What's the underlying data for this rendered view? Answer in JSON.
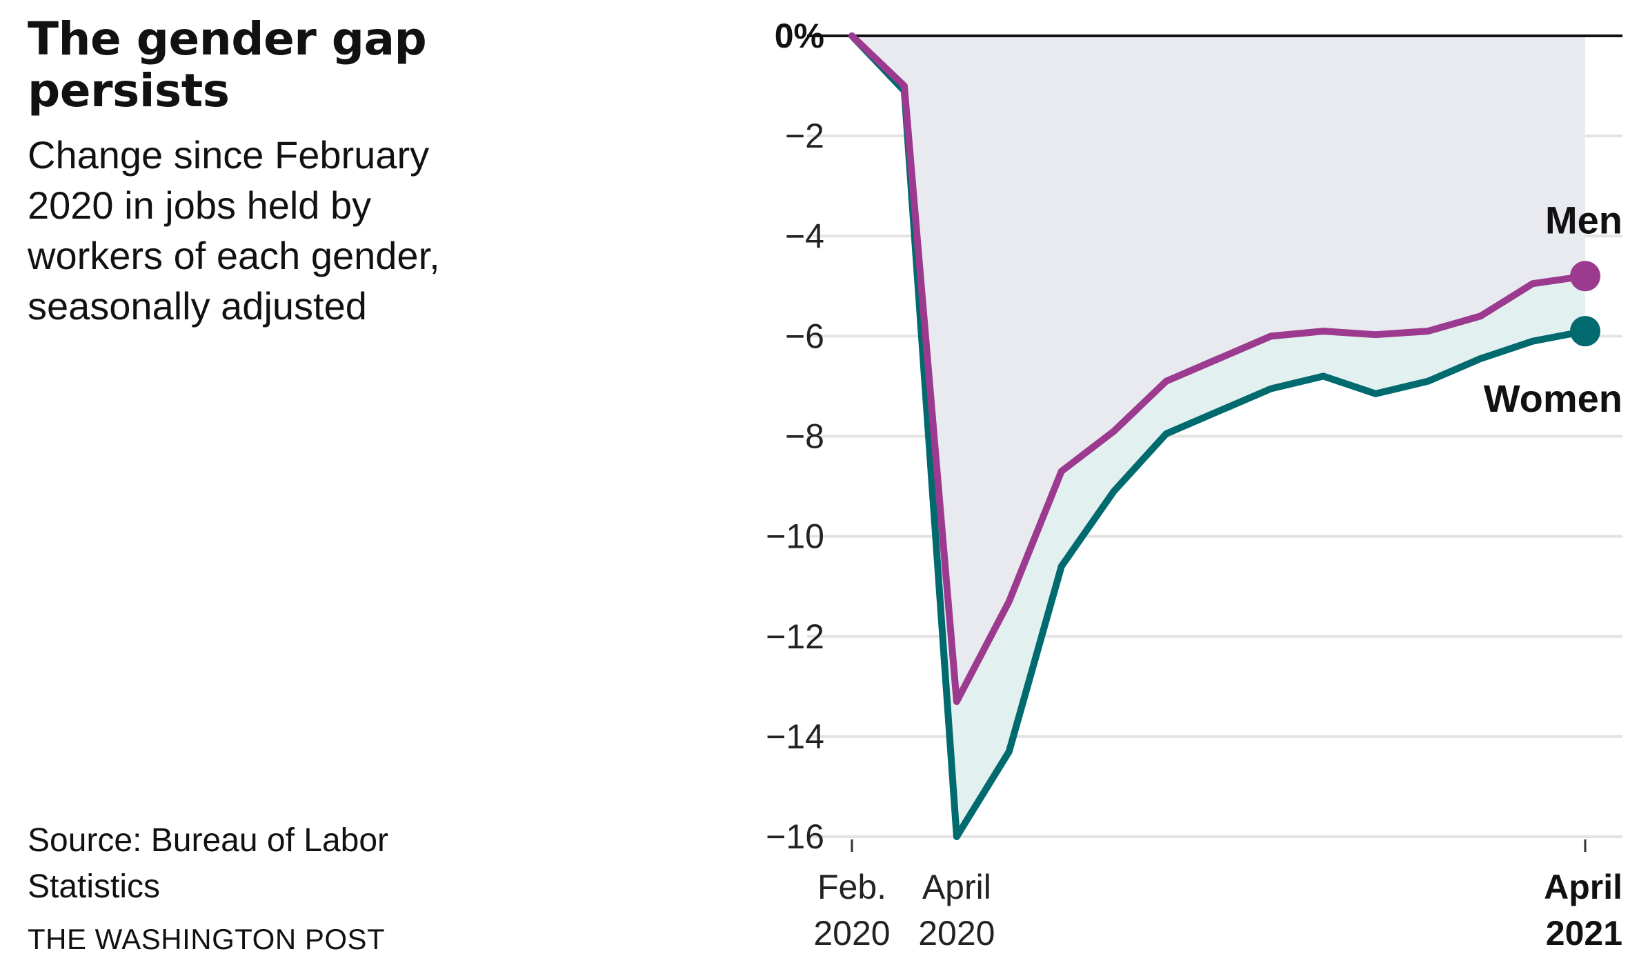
{
  "title": "The gender gap persists",
  "subtitle": "Change since February 2020 in jobs held by workers of each gender, seasonally adjusted",
  "source": "Source: Bureau of Labor Statistics",
  "credit": "THE WASHINGTON POST",
  "colors": {
    "men": "#9b3a8e",
    "women": "#006a6e",
    "upper_fill": "#e9eaf0",
    "gap_fill": "#e3f0f0",
    "grid": "#e3e3e3",
    "zero_line": "#111111"
  },
  "chart_data": {
    "type": "line",
    "x_tick_labels": [
      {
        "line1": "Feb.",
        "line2": "2020",
        "index": 0,
        "bold": false
      },
      {
        "line1": "April",
        "line2": "2020",
        "index": 2,
        "bold": false
      },
      {
        "line1": "April",
        "line2": "2021",
        "index": 14,
        "bold": true
      }
    ],
    "y_ticks": [
      0,
      -2,
      -4,
      -6,
      -8,
      -10,
      -12,
      -14,
      -16
    ],
    "y_tick_labels": [
      "0%",
      "−2",
      "−4",
      "−6",
      "−8",
      "−10",
      "−12",
      "−14",
      "−16"
    ],
    "ylim": [
      -16,
      0
    ],
    "grid": true,
    "series": [
      {
        "name": "Men",
        "values": [
          0,
          -1.0,
          -13.3,
          -11.3,
          -8.7,
          -7.9,
          -6.9,
          -6.45,
          -6.0,
          -5.9,
          -5.97,
          -5.9,
          -5.6,
          -4.95,
          -4.8
        ]
      },
      {
        "name": "Women",
        "values": [
          0,
          -1.1,
          -16.0,
          -14.3,
          -10.6,
          -9.1,
          -7.95,
          -7.5,
          -7.05,
          -6.8,
          -7.15,
          -6.9,
          -6.45,
          -6.1,
          -5.9
        ]
      }
    ]
  }
}
